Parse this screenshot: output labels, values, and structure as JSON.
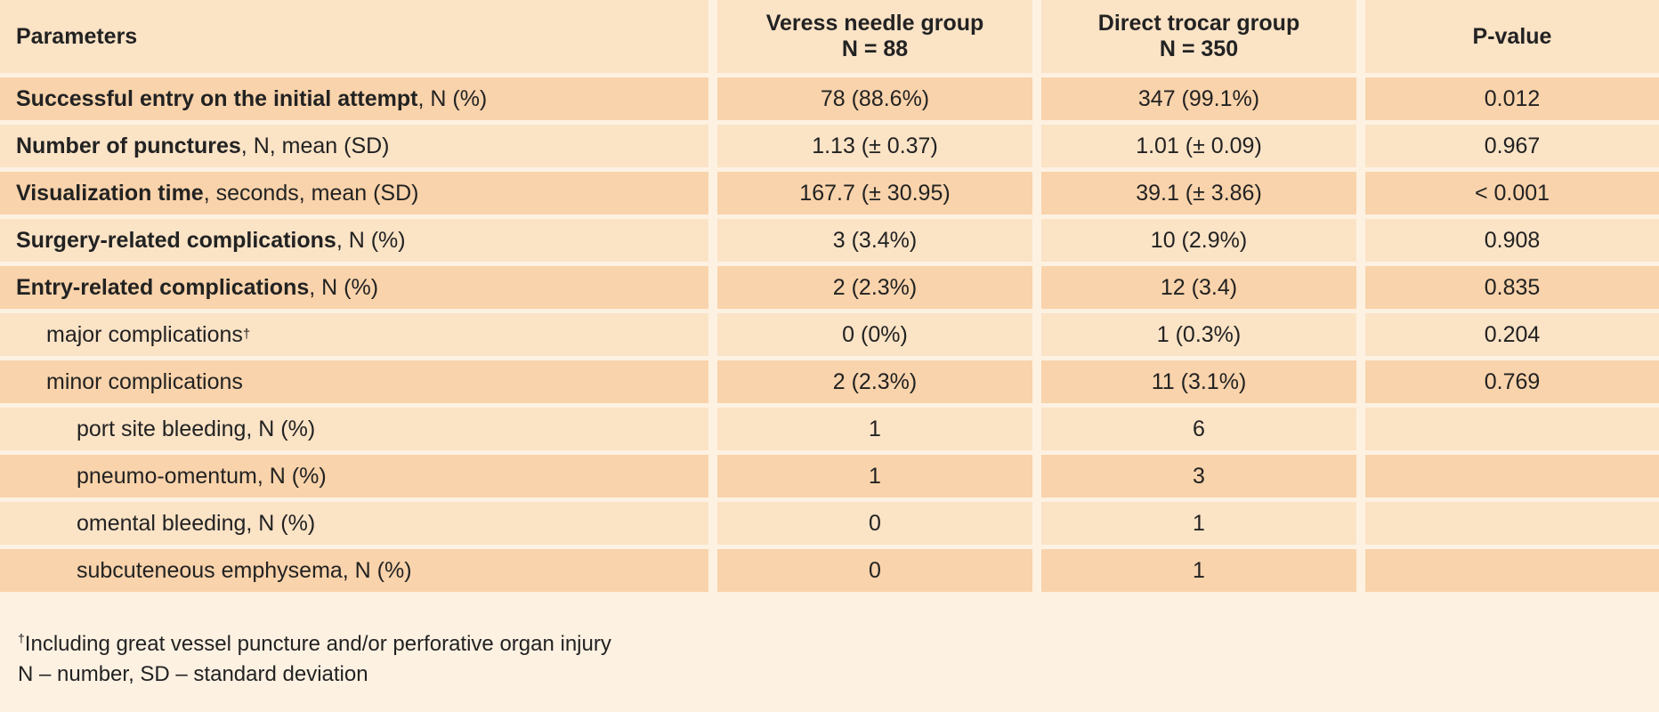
{
  "table": {
    "header": {
      "col1": "Parameters",
      "col2_line1": "Veress needle group",
      "col2_line2": "N = 88",
      "col3_line1": "Direct trocar group",
      "col3_line2": "N = 350",
      "col4": "P-value"
    },
    "rows": [
      {
        "label_bold": "Successful entry on the initial attempt",
        "label_rest": ", N (%)",
        "veress": "78 (88.6%)",
        "direct": "347 (99.1%)",
        "p": "0.012"
      },
      {
        "label_bold": "Number of punctures",
        "label_rest": ", N, mean (SD)",
        "veress": "1.13 (± 0.37)",
        "direct": "1.01 (± 0.09)",
        "p": "0.967"
      },
      {
        "label_bold": "Visualization time",
        "label_rest": ", seconds, mean (SD)",
        "veress": "167.7 (± 30.95)",
        "direct": "39.1 (± 3.86)",
        "p": "< 0.001"
      },
      {
        "label_bold": "Surgery-related complications",
        "label_rest": ", N (%)",
        "veress": "3 (3.4%)",
        "direct": "10 (2.9%)",
        "p": "0.908"
      },
      {
        "label_bold": "Entry-related complications",
        "label_rest": ", N (%)",
        "veress": "2 (2.3%)",
        "direct": "12 (3.4)",
        "p": "0.835"
      },
      {
        "label": "major complications",
        "label_sup": "†",
        "veress": "0 (0%)",
        "direct": "1 (0.3%)",
        "p": "0.204"
      },
      {
        "label": "minor complications",
        "veress": "2 (2.3%)",
        "direct": "11 (3.1%)",
        "p": "0.769"
      },
      {
        "label": "port site bleeding, N (%)",
        "veress": "1",
        "direct": "6",
        "p": ""
      },
      {
        "label": "pneumo-omentum, N (%)",
        "veress": "1",
        "direct": "3",
        "p": ""
      },
      {
        "label": "omental bleeding, N (%)",
        "veress": "0",
        "direct": "1",
        "p": ""
      },
      {
        "label": "subcuteneous emphysema, N (%)",
        "veress": "0",
        "direct": "1",
        "p": ""
      }
    ]
  },
  "footnotes": {
    "dagger": "†",
    "line1": "Including great vessel puncture and/or perforative organ injury",
    "line2": "N – number, SD – standard deviation"
  },
  "colors": {
    "background": "#fdf1e2",
    "row_dark": "#f9d3ab",
    "row_light": "#fbe3c6"
  }
}
